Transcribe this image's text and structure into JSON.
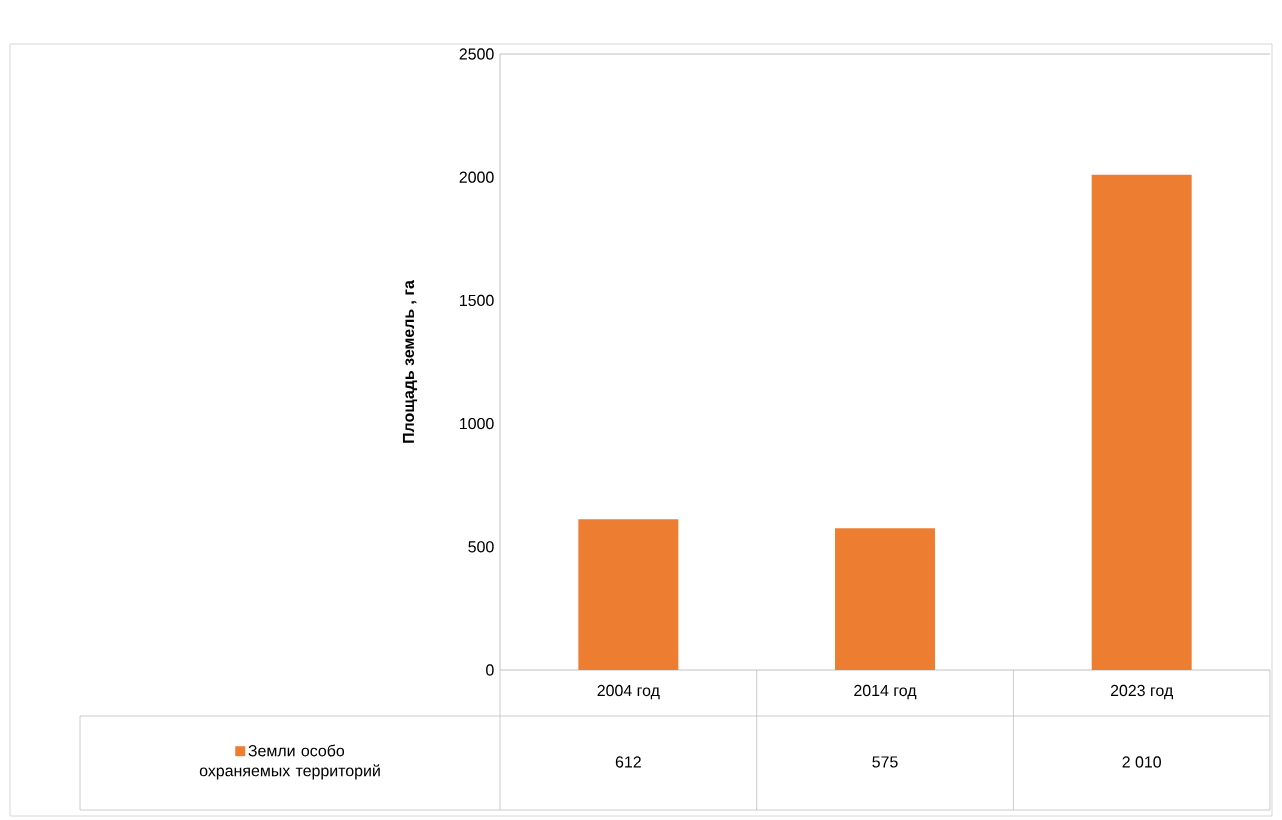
{
  "chart_data": {
    "type": "bar",
    "ylabel": "Площадь земель , га",
    "categories": [
      "2004 год",
      "2014 год",
      "2023 год"
    ],
    "series": [
      {
        "name": "Земли особо охраняемых территорий",
        "color": "#ed7d31",
        "values": [
          612,
          575,
          2010
        ],
        "value_labels": [
          "612",
          "575",
          "2 010"
        ]
      }
    ],
    "ylim": [
      0,
      2500
    ],
    "yticks": [
      0,
      500,
      1000,
      1500,
      2000,
      2500
    ],
    "grid": false,
    "legend": "bottom left"
  }
}
